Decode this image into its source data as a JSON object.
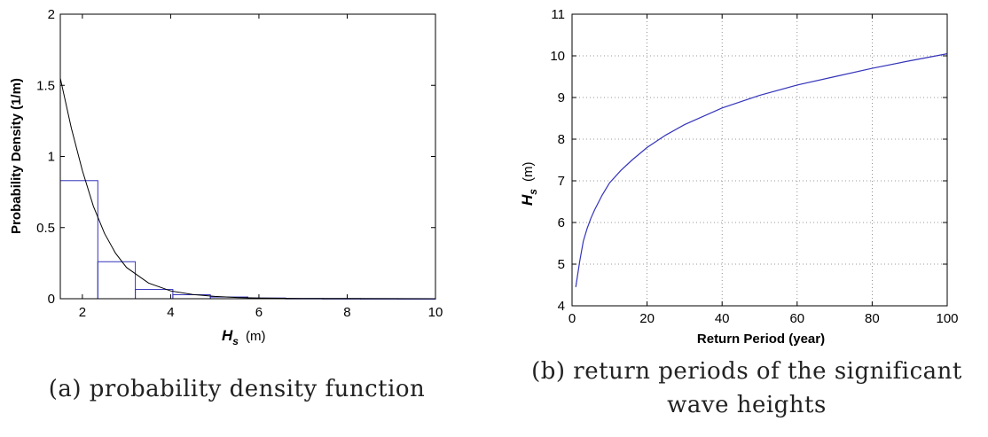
{
  "charts": [
    {
      "id": "a",
      "caption": "(a) probability density function",
      "chart_data": {
        "type": "bar",
        "xlabel_main": "H",
        "xlabel_sub": "s",
        "xlabel_unit": "(m)",
        "ylabel": "Probability Density (1/m)",
        "xlim": [
          1.5,
          10
        ],
        "ylim": [
          0,
          2
        ],
        "xticks": [
          2,
          4,
          6,
          8,
          10
        ],
        "yticks": [
          0,
          0.5,
          1,
          1.5,
          2
        ],
        "ytick_labels": [
          "0",
          "0.5",
          "1",
          "1.5",
          "2"
        ],
        "grid": false,
        "bins": [
          {
            "x0": 1.5,
            "x1": 2.35,
            "value": 0.83
          },
          {
            "x0": 2.35,
            "x1": 3.2,
            "value": 0.26
          },
          {
            "x0": 3.2,
            "x1": 4.05,
            "value": 0.065
          },
          {
            "x0": 4.05,
            "x1": 4.9,
            "value": 0.028
          },
          {
            "x0": 4.9,
            "x1": 5.75,
            "value": 0.012
          },
          {
            "x0": 5.75,
            "x1": 6.6,
            "value": 0.005
          },
          {
            "x0": 6.6,
            "x1": 7.45,
            "value": 0.002
          },
          {
            "x0": 7.45,
            "x1": 8.3,
            "value": 0.001
          },
          {
            "x0": 8.3,
            "x1": 9.15,
            "value": 0.0005
          },
          {
            "x0": 9.15,
            "x1": 10,
            "value": 0.0002
          }
        ],
        "curve": {
          "x": [
            1.5,
            1.75,
            2.0,
            2.25,
            2.5,
            2.75,
            3.0,
            3.5,
            4.0,
            4.5,
            5.0,
            5.5,
            6.0,
            7.0,
            8.0,
            9.0,
            10.0
          ],
          "y": [
            1.55,
            1.2,
            0.9,
            0.65,
            0.46,
            0.32,
            0.22,
            0.11,
            0.055,
            0.03,
            0.016,
            0.009,
            0.005,
            0.002,
            0.001,
            0.0004,
            0.0002
          ]
        },
        "colors": {
          "bars": "#3333bb",
          "curve": "#000000"
        }
      }
    },
    {
      "id": "b",
      "caption_lines": [
        "(b) return periods of the significant",
        "wave heights"
      ],
      "chart_data": {
        "type": "line",
        "xlabel": "Return Period (year)",
        "ylabel_main": "H",
        "ylabel_sub": "s",
        "ylabel_unit": "(m)",
        "xlim": [
          0,
          100
        ],
        "ylim": [
          4,
          11
        ],
        "xticks": [
          0,
          20,
          40,
          60,
          80,
          100
        ],
        "yticks": [
          4,
          5,
          6,
          7,
          8,
          9,
          10,
          11
        ],
        "grid": true,
        "series": [
          {
            "x": [
              1,
              2,
              3,
              4,
              5,
              6,
              8,
              10,
              13,
              16,
              20,
              25,
              30,
              40,
              50,
              60,
              70,
              80,
              90,
              100
            ],
            "y": [
              4.45,
              5.05,
              5.55,
              5.85,
              6.1,
              6.3,
              6.65,
              6.95,
              7.25,
              7.5,
              7.8,
              8.1,
              8.35,
              8.75,
              9.05,
              9.3,
              9.5,
              9.7,
              9.88,
              10.05
            ]
          }
        ],
        "colors": {
          "line": "#3333bb",
          "grid": "#777777"
        }
      }
    }
  ]
}
